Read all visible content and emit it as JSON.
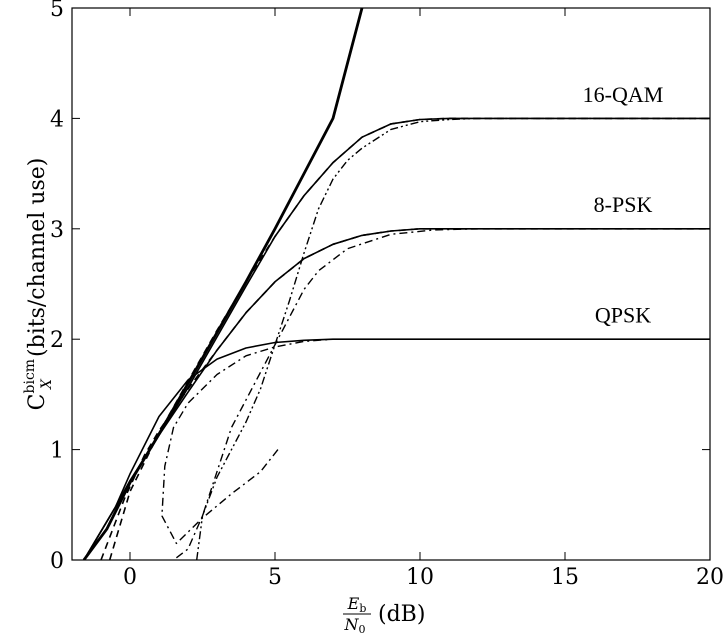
{
  "chart_data": {
    "type": "line",
    "xlabel": {
      "frac_num": "E",
      "frac_num_sub": "b",
      "frac_den": "N",
      "frac_den_sub": "0",
      "unit": "(dB)"
    },
    "ylabel": {
      "main": "C",
      "sup": "bicm",
      "sub": "X",
      "unit": "(bits/channel use)"
    },
    "xlim": [
      -2,
      20
    ],
    "ylim": [
      0,
      5
    ],
    "xticks": [
      0,
      5,
      10,
      15,
      20
    ],
    "yticks": [
      0,
      1,
      2,
      3,
      4,
      5
    ],
    "grid": false,
    "labels": [
      {
        "text": "16-QAM",
        "x": 17,
        "y": 4.15
      },
      {
        "text": "8-PSK",
        "x": 17,
        "y": 3.15
      },
      {
        "text": "QPSK",
        "x": 17,
        "y": 2.15
      }
    ],
    "series": [
      {
        "style": "solid-thick",
        "x": [
          -1.59,
          -0.8,
          0,
          1,
          2,
          3,
          4,
          5,
          6,
          7,
          8
        ],
        "y": [
          0,
          0.28,
          0.7,
          1.14,
          1.6,
          2.06,
          2.52,
          3.0,
          3.5,
          4.0,
          5.0
        ]
      },
      {
        "style": "solid",
        "x": [
          -1.59,
          -0.5,
          0,
          1,
          2,
          3,
          4,
          5,
          6,
          7,
          8,
          9,
          10,
          11,
          12,
          20
        ],
        "y": [
          0,
          0.48,
          0.7,
          1.13,
          1.56,
          2.02,
          2.48,
          2.93,
          3.3,
          3.6,
          3.83,
          3.95,
          3.99,
          4.0,
          4.0,
          4.0
        ]
      },
      {
        "style": "solid",
        "x": [
          -1.59,
          -0.5,
          0,
          1,
          2,
          3,
          4,
          5,
          6,
          7,
          8,
          9,
          10,
          11,
          20
        ],
        "y": [
          0,
          0.48,
          0.72,
          1.13,
          1.52,
          1.9,
          2.24,
          2.52,
          2.73,
          2.86,
          2.94,
          2.98,
          3.0,
          3.0,
          3.0
        ]
      },
      {
        "style": "solid",
        "x": [
          -1.59,
          -0.5,
          0,
          1,
          2,
          3,
          4,
          5,
          6,
          7,
          20
        ],
        "y": [
          0,
          0.48,
          0.78,
          1.3,
          1.63,
          1.82,
          1.92,
          1.97,
          1.99,
          2.0,
          2.0
        ]
      },
      {
        "style": "dashed",
        "x": [
          -0.7,
          0,
          1,
          2,
          3,
          4,
          5,
          6,
          7,
          8,
          9,
          10,
          11,
          20
        ],
        "y": [
          0,
          0.62,
          1.15,
          1.62,
          2.08,
          2.52,
          2.93,
          3.3,
          3.6,
          3.83,
          3.95,
          3.99,
          4.0,
          4.0
        ]
      },
      {
        "style": "dashed",
        "x": [
          -1.0,
          -0.2,
          0.5,
          1,
          2,
          3,
          4,
          5,
          6,
          7,
          8,
          9,
          10,
          11,
          20
        ],
        "y": [
          0,
          0.55,
          0.95,
          1.17,
          1.55,
          1.9,
          2.24,
          2.52,
          2.73,
          2.86,
          2.94,
          2.98,
          3.0,
          3.0,
          3.0
        ]
      },
      {
        "style": "dashdot",
        "x": [
          5.1,
          4.5,
          3.5,
          2.5,
          1.6,
          1.1,
          1.2,
          1.5,
          2.0,
          3.0,
          4.0,
          5.0,
          6.0,
          7.0,
          8.0,
          20
        ],
        "y": [
          1.0,
          0.8,
          0.6,
          0.38,
          0.15,
          0.4,
          0.85,
          1.2,
          1.42,
          1.68,
          1.85,
          1.93,
          1.98,
          2.0,
          2.0,
          2.0
        ]
      },
      {
        "style": "dashdot",
        "x": [
          1.6,
          2.0,
          2.5,
          3.0,
          3.5,
          4.5,
          5.5,
          6.0,
          6.5,
          7.5,
          9.0,
          10.5,
          12,
          20
        ],
        "y": [
          0.02,
          0.1,
          0.4,
          0.8,
          1.2,
          1.7,
          2.2,
          2.45,
          2.62,
          2.82,
          2.95,
          2.99,
          3.0,
          3.0
        ]
      },
      {
        "style": "dashdotdot",
        "x": [
          2.3,
          2.5,
          3,
          3.5,
          4,
          4.5,
          5,
          5.5,
          6,
          6.5,
          7,
          7.5,
          8,
          9,
          10,
          11,
          12,
          20
        ],
        "y": [
          0,
          0.4,
          0.75,
          1.0,
          1.25,
          1.55,
          1.95,
          2.35,
          2.78,
          3.18,
          3.45,
          3.62,
          3.73,
          3.9,
          3.97,
          3.99,
          4.0,
          4.0
        ]
      }
    ]
  }
}
